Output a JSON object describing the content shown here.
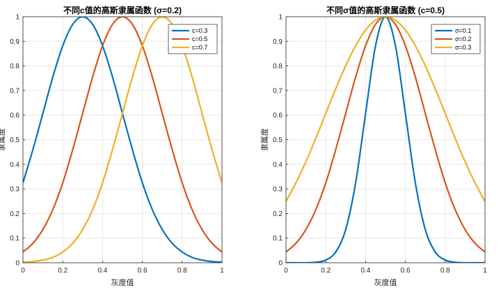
{
  "colors": {
    "series1": "#0072BD",
    "series2": "#D95319",
    "series3": "#EDB120"
  },
  "chart_data": [
    {
      "type": "line",
      "title": "不同c值的高斯隶属函数 (σ=0.2)",
      "xlabel": "灰度值",
      "ylabel": "隶属度",
      "xlim": [
        0,
        1
      ],
      "ylim": [
        0,
        1
      ],
      "xticks": [
        "0",
        "0.2",
        "0.4",
        "0.6",
        "0.8",
        "1"
      ],
      "yticks": [
        "0",
        "0.1",
        "0.2",
        "0.3",
        "0.4",
        "0.5",
        "0.6",
        "0.7",
        "0.8",
        "0.9",
        "1"
      ],
      "grid": true,
      "legend_position": "top-right",
      "x": [
        0,
        0.05,
        0.1,
        0.15,
        0.2,
        0.25,
        0.3,
        0.35,
        0.4,
        0.45,
        0.5,
        0.55,
        0.6,
        0.65,
        0.7,
        0.75,
        0.8,
        0.85,
        0.9,
        0.95,
        1
      ],
      "series": [
        {
          "name": "c=0.3",
          "color": "#0072BD",
          "values": [
            0.325,
            0.46,
            0.607,
            0.755,
            0.882,
            0.969,
            1.0,
            0.969,
            0.882,
            0.755,
            0.607,
            0.46,
            0.325,
            0.216,
            0.135,
            0.079,
            0.044,
            0.022,
            0.011,
            0.005,
            0.002
          ]
        },
        {
          "name": "c=0.5",
          "color": "#D95319",
          "values": [
            0.044,
            0.079,
            0.135,
            0.216,
            0.325,
            0.46,
            0.607,
            0.755,
            0.882,
            0.969,
            1.0,
            0.969,
            0.882,
            0.755,
            0.607,
            0.46,
            0.325,
            0.216,
            0.135,
            0.079,
            0.044
          ]
        },
        {
          "name": "c=0.7",
          "color": "#EDB120",
          "values": [
            0.002,
            0.005,
            0.011,
            0.022,
            0.044,
            0.079,
            0.135,
            0.216,
            0.325,
            0.46,
            0.607,
            0.755,
            0.882,
            0.969,
            1.0,
            0.969,
            0.882,
            0.755,
            0.607,
            0.46,
            0.325
          ]
        }
      ]
    },
    {
      "type": "line",
      "title": "不同σ值的高斯隶属函数 (c=0.5)",
      "xlabel": "灰度值",
      "ylabel": "隶属度",
      "xlim": [
        0,
        1
      ],
      "ylim": [
        0,
        1
      ],
      "xticks": [
        "0",
        "0.2",
        "0.4",
        "0.6",
        "0.8",
        "1"
      ],
      "yticks": [
        "0",
        "0.1",
        "0.2",
        "0.3",
        "0.4",
        "0.5",
        "0.6",
        "0.7",
        "0.8",
        "0.9",
        "1"
      ],
      "grid": true,
      "legend_position": "top-right",
      "x": [
        0,
        0.05,
        0.1,
        0.15,
        0.2,
        0.25,
        0.3,
        0.35,
        0.4,
        0.45,
        0.5,
        0.55,
        0.6,
        0.65,
        0.7,
        0.75,
        0.8,
        0.85,
        0.9,
        0.95,
        1
      ],
      "series": [
        {
          "name": "σ=0.1",
          "color": "#0072BD",
          "values": [
            0.0,
            0.0,
            0.0,
            0.002,
            0.011,
            0.044,
            0.135,
            0.325,
            0.607,
            0.882,
            1.0,
            0.882,
            0.607,
            0.325,
            0.135,
            0.044,
            0.011,
            0.002,
            0.0,
            0.0,
            0.0
          ]
        },
        {
          "name": "σ=0.2",
          "color": "#D95319",
          "values": [
            0.044,
            0.079,
            0.135,
            0.216,
            0.325,
            0.46,
            0.607,
            0.755,
            0.882,
            0.969,
            1.0,
            0.969,
            0.882,
            0.755,
            0.607,
            0.46,
            0.325,
            0.216,
            0.135,
            0.079,
            0.044
          ]
        },
        {
          "name": "σ=0.3",
          "color": "#EDB120",
          "values": [
            0.249,
            0.325,
            0.411,
            0.506,
            0.607,
            0.707,
            0.801,
            0.882,
            0.946,
            0.986,
            1.0,
            0.986,
            0.946,
            0.882,
            0.801,
            0.707,
            0.607,
            0.506,
            0.411,
            0.325,
            0.249
          ]
        }
      ]
    }
  ]
}
